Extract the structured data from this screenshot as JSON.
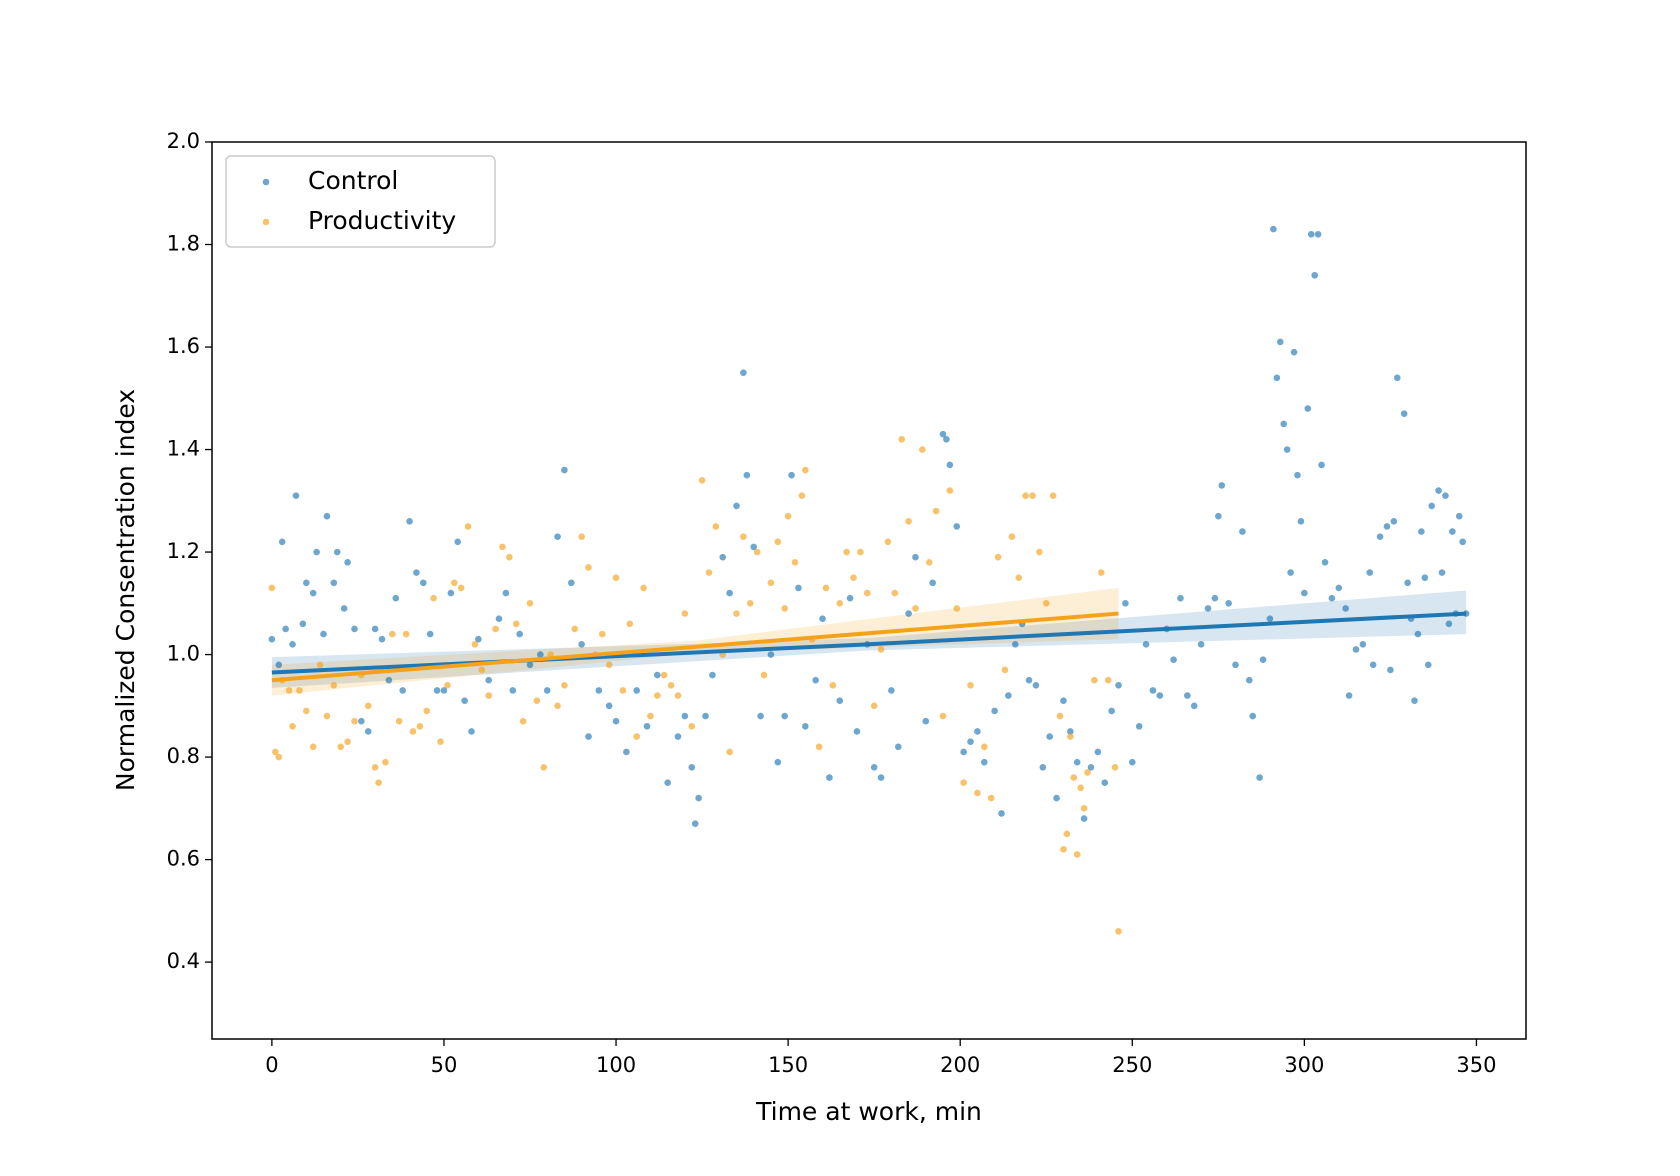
{
  "chart_data": {
    "type": "scatter",
    "xlabel": "Time at work, min",
    "ylabel": "Normalized Consentration index",
    "xlim": [
      -17.4,
      364.4
    ],
    "ylim": [
      0.25,
      2.0
    ],
    "xticks": [
      0,
      50,
      100,
      150,
      200,
      250,
      300,
      350
    ],
    "yticks": [
      0.4,
      0.6,
      0.8,
      {
        "value": 1,
        "label": "1.0"
      },
      1.2,
      1.4,
      1.6,
      1.8,
      {
        "value": 2,
        "label": "2.0"
      }
    ],
    "legend": "upper left",
    "series": [
      {
        "name": "Control",
        "color": "#1f77b4",
        "x": [
          0,
          2,
          3,
          4,
          6,
          7,
          9,
          10,
          12,
          13,
          15,
          16,
          18,
          19,
          21,
          22,
          24,
          26,
          28,
          30,
          32,
          34,
          36,
          38,
          40,
          42,
          44,
          46,
          48,
          50,
          52,
          54,
          56,
          58,
          60,
          63,
          66,
          68,
          70,
          72,
          75,
          78,
          80,
          83,
          85,
          87,
          90,
          92,
          95,
          98,
          100,
          103,
          106,
          109,
          112,
          115,
          118,
          120,
          122,
          123,
          124,
          126,
          128,
          131,
          133,
          135,
          137,
          138,
          140,
          142,
          145,
          147,
          149,
          151,
          153,
          155,
          158,
          160,
          162,
          165,
          168,
          170,
          173,
          175,
          177,
          180,
          182,
          185,
          187,
          190,
          192,
          195,
          196,
          197,
          199,
          201,
          203,
          205,
          207,
          210,
          212,
          214,
          216,
          218,
          220,
          222,
          224,
          226,
          228,
          230,
          232,
          234,
          236,
          238,
          240,
          242,
          244,
          246,
          248,
          250,
          252,
          254,
          256,
          258,
          260,
          262,
          264,
          266,
          268,
          270,
          272,
          274,
          275,
          276,
          278,
          280,
          282,
          284,
          285,
          287,
          288,
          290,
          291,
          292,
          293,
          294,
          295,
          296,
          297,
          298,
          299,
          300,
          301,
          302,
          303,
          304,
          305,
          306,
          308,
          310,
          312,
          313,
          315,
          317,
          319,
          320,
          322,
          324,
          325,
          326,
          327,
          329,
          330,
          331,
          332,
          333,
          334,
          335,
          336,
          337,
          339,
          340,
          341,
          342,
          343,
          344,
          345,
          346,
          347
        ],
        "values": [
          1.03,
          0.98,
          1.22,
          1.05,
          1.02,
          1.31,
          1.06,
          1.14,
          1.12,
          1.2,
          1.04,
          1.27,
          1.14,
          1.2,
          1.09,
          1.18,
          1.05,
          0.87,
          0.85,
          1.05,
          1.03,
          0.95,
          1.11,
          0.93,
          1.26,
          1.16,
          1.14,
          1.04,
          0.93,
          0.93,
          1.12,
          1.22,
          0.91,
          0.85,
          1.03,
          0.95,
          1.07,
          1.12,
          0.93,
          1.04,
          0.98,
          1.0,
          0.93,
          1.23,
          1.36,
          1.14,
          1.02,
          0.84,
          0.93,
          0.9,
          0.87,
          0.81,
          0.93,
          0.86,
          0.96,
          0.75,
          0.84,
          0.88,
          0.78,
          0.67,
          0.72,
          0.88,
          0.96,
          1.19,
          1.12,
          1.29,
          1.55,
          1.35,
          1.21,
          0.88,
          1.0,
          0.79,
          0.88,
          1.35,
          1.13,
          0.86,
          0.95,
          1.07,
          0.76,
          0.91,
          1.11,
          0.85,
          1.02,
          0.78,
          0.76,
          0.93,
          0.82,
          1.08,
          1.19,
          0.87,
          1.14,
          1.43,
          1.42,
          1.37,
          1.25,
          0.81,
          0.83,
          0.85,
          0.79,
          0.89,
          0.69,
          0.92,
          1.02,
          1.06,
          0.95,
          0.94,
          0.78,
          0.84,
          0.72,
          0.91,
          0.85,
          0.79,
          0.68,
          0.78,
          0.81,
          0.75,
          0.89,
          0.94,
          1.1,
          0.79,
          0.86,
          1.02,
          0.93,
          0.92,
          1.05,
          0.99,
          1.11,
          0.92,
          0.9,
          1.02,
          1.09,
          1.11,
          1.27,
          1.33,
          1.1,
          0.98,
          1.24,
          0.95,
          0.88,
          0.76,
          0.99,
          1.07,
          1.83,
          1.54,
          1.61,
          1.45,
          1.4,
          1.16,
          1.59,
          1.35,
          1.26,
          1.12,
          1.48,
          1.82,
          1.74,
          1.82,
          1.37,
          1.18,
          1.11,
          1.13,
          1.09,
          0.92,
          1.01,
          1.02,
          1.16,
          0.98,
          1.23,
          1.25,
          0.97,
          1.26,
          1.54,
          1.47,
          1.14,
          1.07,
          0.91,
          1.04,
          1.24,
          1.15,
          0.98,
          1.29,
          1.32,
          1.16,
          1.31,
          1.06,
          1.24,
          1.08,
          1.27,
          1.22,
          1.08
        ],
        "fit": {
          "x": [
            0,
            173,
            347
          ],
          "values": [
            0.965,
            1.02,
            1.08
          ],
          "lower": [
            0.935,
            1.008,
            1.04
          ],
          "upper": [
            0.995,
            1.032,
            1.125
          ]
        }
      },
      {
        "name": "Productivity",
        "color": "#f4a21c",
        "x": [
          0,
          1,
          2,
          3,
          5,
          6,
          8,
          10,
          12,
          14,
          16,
          18,
          20,
          22,
          24,
          26,
          28,
          30,
          31,
          33,
          35,
          37,
          39,
          41,
          43,
          45,
          47,
          49,
          51,
          53,
          55,
          57,
          59,
          61,
          63,
          65,
          67,
          69,
          71,
          73,
          75,
          77,
          79,
          81,
          83,
          85,
          88,
          90,
          92,
          94,
          96,
          98,
          100,
          102,
          104,
          106,
          108,
          110,
          112,
          114,
          116,
          118,
          120,
          122,
          125,
          127,
          129,
          131,
          133,
          135,
          137,
          139,
          141,
          143,
          145,
          147,
          149,
          150,
          152,
          154,
          155,
          157,
          159,
          161,
          163,
          165,
          167,
          169,
          171,
          173,
          175,
          177,
          179,
          181,
          183,
          185,
          187,
          189,
          191,
          193,
          195,
          197,
          199,
          201,
          203,
          205,
          207,
          209,
          211,
          213,
          215,
          217,
          219,
          221,
          223,
          225,
          227,
          229,
          230,
          231,
          232,
          233,
          234,
          235,
          236,
          237,
          239,
          241,
          243,
          245,
          246
        ],
        "values": [
          1.13,
          0.81,
          0.8,
          0.95,
          0.93,
          0.86,
          0.93,
          0.89,
          0.82,
          0.98,
          0.88,
          0.94,
          0.82,
          0.83,
          0.87,
          0.96,
          0.9,
          0.78,
          0.75,
          0.79,
          1.04,
          0.87,
          1.04,
          0.85,
          0.86,
          0.89,
          1.11,
          0.83,
          0.94,
          1.14,
          1.13,
          1.25,
          1.02,
          0.97,
          0.92,
          1.05,
          1.21,
          1.19,
          1.06,
          0.87,
          1.1,
          0.91,
          0.78,
          1.0,
          0.9,
          0.94,
          1.05,
          1.23,
          1.17,
          1.0,
          1.04,
          0.98,
          1.15,
          0.93,
          1.06,
          0.84,
          1.13,
          0.88,
          0.92,
          0.96,
          0.94,
          0.92,
          1.08,
          0.86,
          1.34,
          1.16,
          1.25,
          1.0,
          0.81,
          1.08,
          1.23,
          1.1,
          1.2,
          0.96,
          1.14,
          1.22,
          1.09,
          1.27,
          1.18,
          1.31,
          1.36,
          1.03,
          0.82,
          1.13,
          0.94,
          1.1,
          1.2,
          1.15,
          1.2,
          1.12,
          0.9,
          1.01,
          1.22,
          1.12,
          1.42,
          1.26,
          1.09,
          1.4,
          1.18,
          1.28,
          0.88,
          1.32,
          1.09,
          0.75,
          0.94,
          0.73,
          0.82,
          0.72,
          1.19,
          0.97,
          1.23,
          1.15,
          1.31,
          1.31,
          1.2,
          1.1,
          1.31,
          0.88,
          0.62,
          0.65,
          0.84,
          0.76,
          0.61,
          0.74,
          0.7,
          0.77,
          0.95,
          1.16,
          0.95,
          0.78,
          0.46
        ],
        "fit": {
          "x": [
            0,
            123,
            246
          ],
          "values": [
            0.95,
            1.015,
            1.08
          ],
          "lower": [
            0.92,
            1.003,
            1.03
          ],
          "upper": [
            0.98,
            1.027,
            1.13
          ]
        }
      }
    ]
  }
}
